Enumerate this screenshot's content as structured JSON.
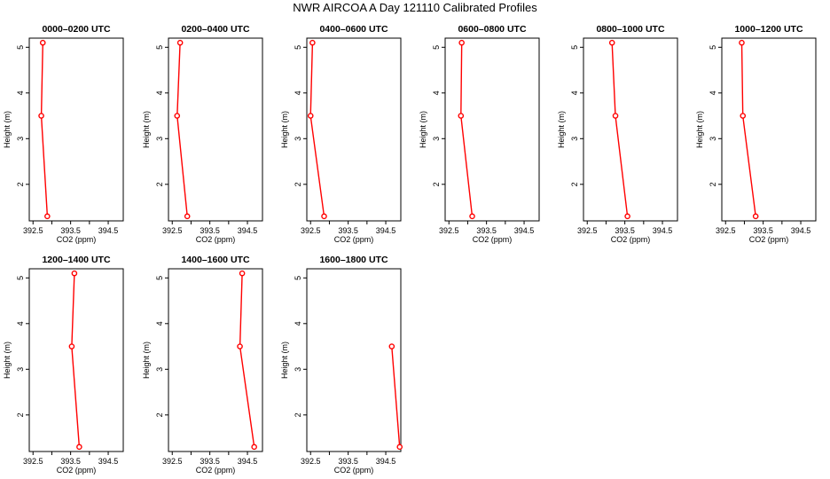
{
  "page": {
    "title": "NWR AIRCOA A  Day 121110  Calibrated Profiles"
  },
  "chart_data": [
    {
      "type": "line",
      "title": "0000–0200 UTC",
      "xlabel": "CO2 (ppm)",
      "ylabel": "Height (m)",
      "xlim": [
        392.4,
        394.9
      ],
      "ylim": [
        1.2,
        5.2
      ],
      "xticks": [
        "392.5",
        "393.5",
        "394.5"
      ],
      "yticks": [
        "2",
        "3",
        "4",
        "5"
      ],
      "grid": false,
      "color": "#ff0000",
      "x": [
        392.88,
        392.72,
        392.76
      ],
      "y": [
        1.3,
        3.5,
        5.1
      ]
    },
    {
      "type": "line",
      "title": "0200–0400 UTC",
      "xlabel": "CO2 (ppm)",
      "ylabel": "Height (m)",
      "xlim": [
        392.4,
        394.9
      ],
      "ylim": [
        1.2,
        5.2
      ],
      "xticks": [
        "392.5",
        "393.5",
        "394.5"
      ],
      "yticks": [
        "2",
        "3",
        "4",
        "5"
      ],
      "grid": false,
      "color": "#ff0000",
      "x": [
        392.9,
        392.63,
        392.71
      ],
      "y": [
        1.3,
        3.5,
        5.1
      ]
    },
    {
      "type": "line",
      "title": "0400–0600 UTC",
      "xlabel": "CO2 (ppm)",
      "ylabel": "Height (m)",
      "xlim": [
        392.4,
        394.9
      ],
      "ylim": [
        1.2,
        5.2
      ],
      "xticks": [
        "392.5",
        "393.5",
        "394.5"
      ],
      "yticks": [
        "2",
        "3",
        "4",
        "5"
      ],
      "grid": false,
      "color": "#ff0000",
      "x": [
        392.86,
        392.5,
        392.55
      ],
      "y": [
        1.3,
        3.5,
        5.1
      ]
    },
    {
      "type": "line",
      "title": "0600–0800 UTC",
      "xlabel": "CO2 (ppm)",
      "ylabel": "Height (m)",
      "xlim": [
        392.4,
        394.9
      ],
      "ylim": [
        1.2,
        5.2
      ],
      "xticks": [
        "392.5",
        "393.5",
        "394.5"
      ],
      "yticks": [
        "2",
        "3",
        "4",
        "5"
      ],
      "grid": false,
      "color": "#ff0000",
      "x": [
        393.12,
        392.82,
        392.84
      ],
      "y": [
        1.3,
        3.5,
        5.1
      ]
    },
    {
      "type": "line",
      "title": "0800–1000 UTC",
      "xlabel": "CO2 (ppm)",
      "ylabel": "Height (m)",
      "xlim": [
        392.4,
        394.9
      ],
      "ylim": [
        1.2,
        5.2
      ],
      "xticks": [
        "392.5",
        "393.5",
        "394.5"
      ],
      "yticks": [
        "2",
        "3",
        "4",
        "5"
      ],
      "grid": false,
      "color": "#ff0000",
      "x": [
        393.57,
        393.25,
        393.16
      ],
      "y": [
        1.3,
        3.5,
        5.1
      ]
    },
    {
      "type": "line",
      "title": "1000–1200 UTC",
      "xlabel": "CO2 (ppm)",
      "ylabel": "Height (m)",
      "xlim": [
        392.4,
        394.9
      ],
      "ylim": [
        1.2,
        5.2
      ],
      "xticks": [
        "392.5",
        "393.5",
        "394.5"
      ],
      "yticks": [
        "2",
        "3",
        "4",
        "5"
      ],
      "grid": false,
      "color": "#ff0000",
      "x": [
        393.3,
        392.96,
        392.93
      ],
      "y": [
        1.3,
        3.5,
        5.1
      ]
    },
    {
      "type": "line",
      "title": "1200–1400 UTC",
      "xlabel": "CO2 (ppm)",
      "ylabel": "Height (m)",
      "xlim": [
        392.4,
        394.9
      ],
      "ylim": [
        1.2,
        5.2
      ],
      "xticks": [
        "392.5",
        "393.5",
        "394.5"
      ],
      "yticks": [
        "2",
        "3",
        "4",
        "5"
      ],
      "grid": false,
      "color": "#ff0000",
      "x": [
        393.73,
        393.53,
        393.6
      ],
      "y": [
        1.3,
        3.5,
        5.1
      ]
    },
    {
      "type": "line",
      "title": "1400–1600 UTC",
      "xlabel": "CO2 (ppm)",
      "ylabel": "Height (m)",
      "xlim": [
        392.4,
        394.9
      ],
      "ylim": [
        1.2,
        5.2
      ],
      "xticks": [
        "392.5",
        "393.5",
        "394.5"
      ],
      "yticks": [
        "2",
        "3",
        "4",
        "5"
      ],
      "grid": false,
      "color": "#ff0000",
      "x": [
        394.68,
        394.3,
        394.36
      ],
      "y": [
        1.3,
        3.5,
        5.1
      ]
    },
    {
      "type": "line",
      "title": "1600–1800 UTC",
      "xlabel": "CO2 (ppm)",
      "ylabel": "Height (m)",
      "xlim": [
        392.4,
        394.9
      ],
      "ylim": [
        1.2,
        5.2
      ],
      "xticks": [
        "392.5",
        "393.5",
        "394.5"
      ],
      "yticks": [
        "2",
        "3",
        "4",
        "5"
      ],
      "grid": false,
      "color": "#ff0000",
      "x": [
        394.87,
        394.66
      ],
      "y": [
        1.3,
        3.5
      ]
    }
  ]
}
